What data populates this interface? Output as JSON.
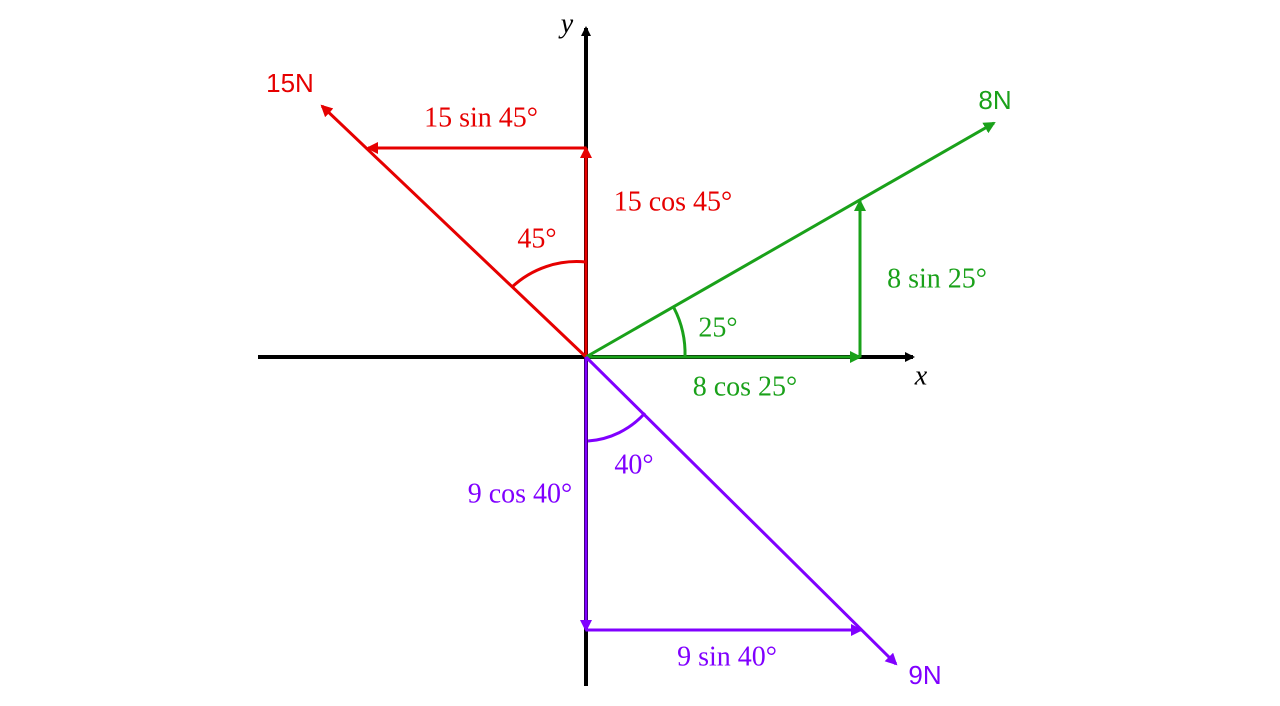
{
  "axes": {
    "x": "x",
    "y": "y"
  },
  "forces": [
    {
      "label": "15N",
      "horizontal": "15 sin 45°",
      "vertical": "15 cos 45°",
      "angle": "45°"
    },
    {
      "label": "8N",
      "horizontal": "8 cos 25°",
      "vertical": "8 sin 25°",
      "angle": "25°"
    },
    {
      "label": "9N",
      "horizontal": "9 sin 40°",
      "vertical": "9 cos 40°",
      "angle": "40°"
    }
  ]
}
